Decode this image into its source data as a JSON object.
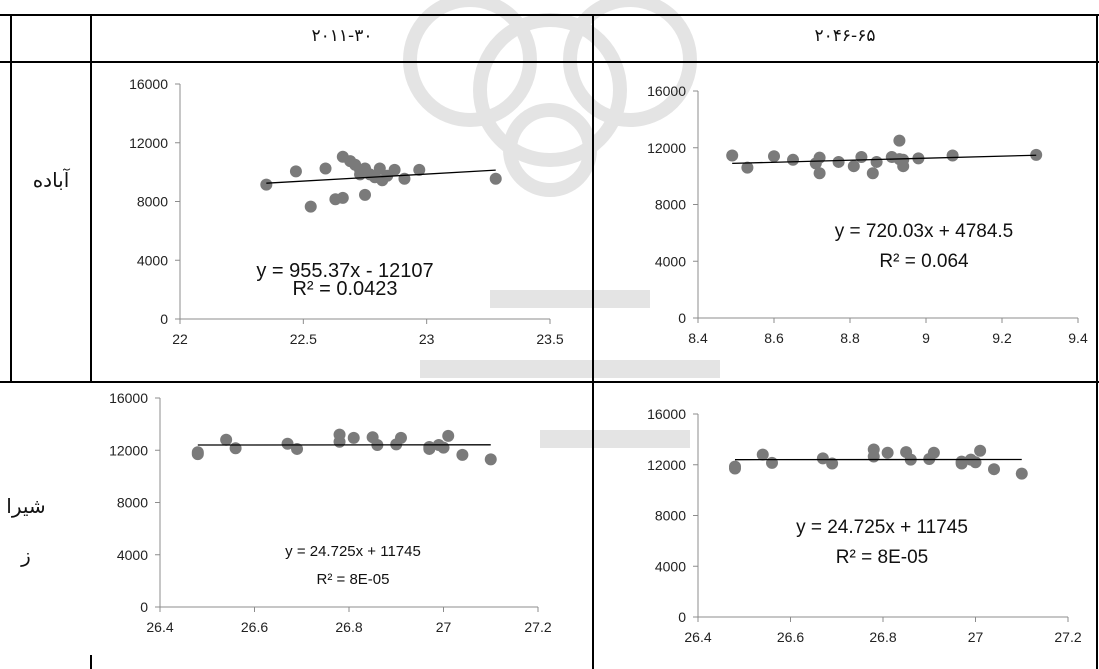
{
  "table": {
    "header_1": "۲۰۱۱-۳۰",
    "header_2": "۲۰۴۶-۶۵",
    "row_1": "آباده",
    "row_2a": "شیرا",
    "row_2b": "ز"
  },
  "colors": {
    "marker": "#7a7a7a",
    "trend": "#000000",
    "axis": "#8c8c8c"
  },
  "chart_data": [
    {
      "type": "scatter",
      "xlim": [
        22,
        23.5
      ],
      "ylim": [
        0,
        16000
      ],
      "xticks": [
        "22",
        "22.5",
        "23",
        "23.5"
      ],
      "xtickvals": [
        22,
        22.5,
        23,
        23.5
      ],
      "yticks": [
        "0",
        "4000",
        "8000",
        "12000",
        "16000"
      ],
      "ytickvals": [
        0,
        4000,
        8000,
        12000,
        16000
      ],
      "points": [
        [
          22.35,
          9150
        ],
        [
          22.47,
          10050
        ],
        [
          22.53,
          7650
        ],
        [
          22.59,
          10250
        ],
        [
          22.63,
          8150
        ],
        [
          22.66,
          8250
        ],
        [
          22.66,
          11050
        ],
        [
          22.69,
          10750
        ],
        [
          22.71,
          10500
        ],
        [
          22.73,
          10150
        ],
        [
          22.73,
          9850
        ],
        [
          22.75,
          8450
        ],
        [
          22.75,
          10250
        ],
        [
          22.77,
          9850
        ],
        [
          22.79,
          9650
        ],
        [
          22.81,
          10250
        ],
        [
          22.82,
          9450
        ],
        [
          22.84,
          9750
        ],
        [
          22.87,
          10150
        ],
        [
          22.91,
          9550
        ],
        [
          22.97,
          10150
        ],
        [
          23.28,
          9550
        ]
      ],
      "trend": {
        "x1": 22.35,
        "x2": 23.28,
        "slope": 955.37,
        "intercept": -12107
      },
      "eq": "y = 955.37x - 12107",
      "r2": "R² = 0.0423"
    },
    {
      "type": "scatter",
      "xlim": [
        8.4,
        9.4
      ],
      "ylim": [
        0,
        16000
      ],
      "xticks": [
        "8.4",
        "8.6",
        "8.8",
        "9",
        "9.2",
        "9.4"
      ],
      "xtickvals": [
        8.4,
        8.6,
        8.8,
        9,
        9.2,
        9.4
      ],
      "yticks": [
        "0",
        "4000",
        "8000",
        "12000",
        "16000"
      ],
      "ytickvals": [
        0,
        4000,
        8000,
        12000,
        16000
      ],
      "points": [
        [
          8.49,
          11450
        ],
        [
          8.53,
          10600
        ],
        [
          8.6,
          11400
        ],
        [
          8.65,
          11150
        ],
        [
          8.71,
          10900
        ],
        [
          8.72,
          10200
        ],
        [
          8.72,
          11300
        ],
        [
          8.77,
          11000
        ],
        [
          8.81,
          10700
        ],
        [
          8.83,
          11350
        ],
        [
          8.86,
          10200
        ],
        [
          8.87,
          11000
        ],
        [
          8.91,
          11350
        ],
        [
          8.93,
          11200
        ],
        [
          8.93,
          12500
        ],
        [
          8.94,
          10700
        ],
        [
          8.94,
          11150
        ],
        [
          8.98,
          11250
        ],
        [
          9.07,
          11450
        ],
        [
          9.29,
          11500
        ]
      ],
      "trend": {
        "x1": 8.49,
        "x2": 9.29,
        "slope": 720.03,
        "intercept": 4784.5
      },
      "eq": "y = 720.03x + 4784.5",
      "r2": "R² = 0.064"
    },
    {
      "type": "scatter",
      "xlim": [
        26.4,
        27.2
      ],
      "ylim": [
        0,
        16000
      ],
      "xticks": [
        "26.4",
        "26.6",
        "26.8",
        "27",
        "27.2"
      ],
      "xtickvals": [
        26.4,
        26.6,
        26.8,
        27,
        27.2
      ],
      "yticks": [
        "0",
        "4000",
        "8000",
        "12000",
        "16000"
      ],
      "ytickvals": [
        0,
        4000,
        8000,
        12000,
        16000
      ],
      "points": [
        [
          26.48,
          11700
        ],
        [
          26.48,
          11850
        ],
        [
          26.54,
          12800
        ],
        [
          26.56,
          12150
        ],
        [
          26.67,
          12500
        ],
        [
          26.69,
          12100
        ],
        [
          26.78,
          12650
        ],
        [
          26.78,
          13200
        ],
        [
          26.81,
          12950
        ],
        [
          26.85,
          13000
        ],
        [
          26.86,
          12400
        ],
        [
          26.9,
          12450
        ],
        [
          26.91,
          12950
        ],
        [
          26.97,
          12100
        ],
        [
          26.97,
          12250
        ],
        [
          26.99,
          12400
        ],
        [
          27.0,
          12200
        ],
        [
          27.01,
          13100
        ],
        [
          27.04,
          11650
        ],
        [
          27.1,
          11300
        ]
      ],
      "trend": {
        "x1": 26.48,
        "x2": 27.1,
        "slope": 24.725,
        "intercept": 11745
      },
      "eq": "y = 24.725x + 11745",
      "r2": "R² = 8E-05"
    },
    {
      "type": "scatter",
      "xlim": [
        26.4,
        27.2
      ],
      "ylim": [
        0,
        16000
      ],
      "xticks": [
        "26.4",
        "26.6",
        "26.8",
        "27",
        "27.2"
      ],
      "xtickvals": [
        26.4,
        26.6,
        26.8,
        27,
        27.2
      ],
      "yticks": [
        "0",
        "4000",
        "8000",
        "12000",
        "16000"
      ],
      "ytickvals": [
        0,
        4000,
        8000,
        12000,
        16000
      ],
      "points": [
        [
          26.48,
          11700
        ],
        [
          26.48,
          11850
        ],
        [
          26.54,
          12800
        ],
        [
          26.56,
          12150
        ],
        [
          26.67,
          12500
        ],
        [
          26.69,
          12100
        ],
        [
          26.78,
          12650
        ],
        [
          26.78,
          13200
        ],
        [
          26.81,
          12950
        ],
        [
          26.85,
          13000
        ],
        [
          26.86,
          12400
        ],
        [
          26.9,
          12450
        ],
        [
          26.91,
          12950
        ],
        [
          26.97,
          12100
        ],
        [
          26.97,
          12250
        ],
        [
          26.99,
          12400
        ],
        [
          27.0,
          12200
        ],
        [
          27.01,
          13100
        ],
        [
          27.04,
          11650
        ],
        [
          27.1,
          11300
        ]
      ],
      "trend": {
        "x1": 26.48,
        "x2": 27.1,
        "slope": 24.725,
        "intercept": 11745
      },
      "eq": "y = 24.725x + 11745",
      "r2": "R² = 8E-05"
    }
  ]
}
